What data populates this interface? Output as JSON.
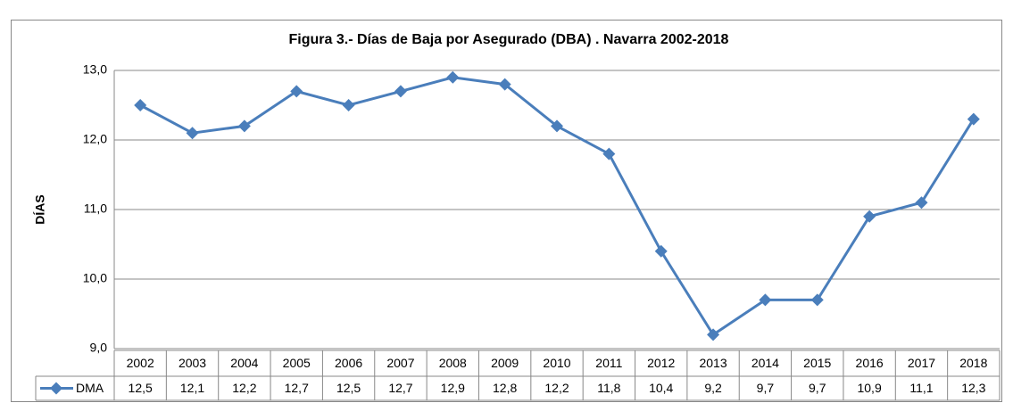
{
  "chart_data": {
    "type": "line",
    "title": "Figura 3.- Días de Baja por Asegurado (DBA)  . Navarra 2002-2018",
    "y_label": "DÍAS",
    "categories": [
      "2002",
      "2003",
      "2004",
      "2005",
      "2006",
      "2007",
      "2008",
      "2009",
      "2010",
      "2011",
      "2012",
      "2013",
      "2014",
      "2015",
      "2016",
      "2017",
      "2018"
    ],
    "series": [
      {
        "name": "DMA",
        "color": "#4a7ebb",
        "values": [
          12.5,
          12.1,
          12.2,
          12.7,
          12.5,
          12.7,
          12.9,
          12.8,
          12.2,
          11.8,
          10.4,
          9.2,
          9.7,
          9.7,
          10.9,
          11.1,
          12.3
        ],
        "value_labels": [
          "12,5",
          "12,1",
          "12,2",
          "12,7",
          "12,5",
          "12,7",
          "12,9",
          "12,8",
          "12,2",
          "11,8",
          "10,4",
          "9,2",
          "9,7",
          "9,7",
          "10,9",
          "11,1",
          "12,3"
        ]
      }
    ],
    "ylim": [
      9,
      13
    ],
    "yticks": [
      {
        "value": 9,
        "label": "9,0"
      },
      {
        "value": 10,
        "label": "10,0"
      },
      {
        "value": 11,
        "label": "11,0"
      },
      {
        "value": 12,
        "label": "12,0"
      },
      {
        "value": 13,
        "label": "13,0"
      }
    ],
    "grid": true,
    "data_table": true
  }
}
